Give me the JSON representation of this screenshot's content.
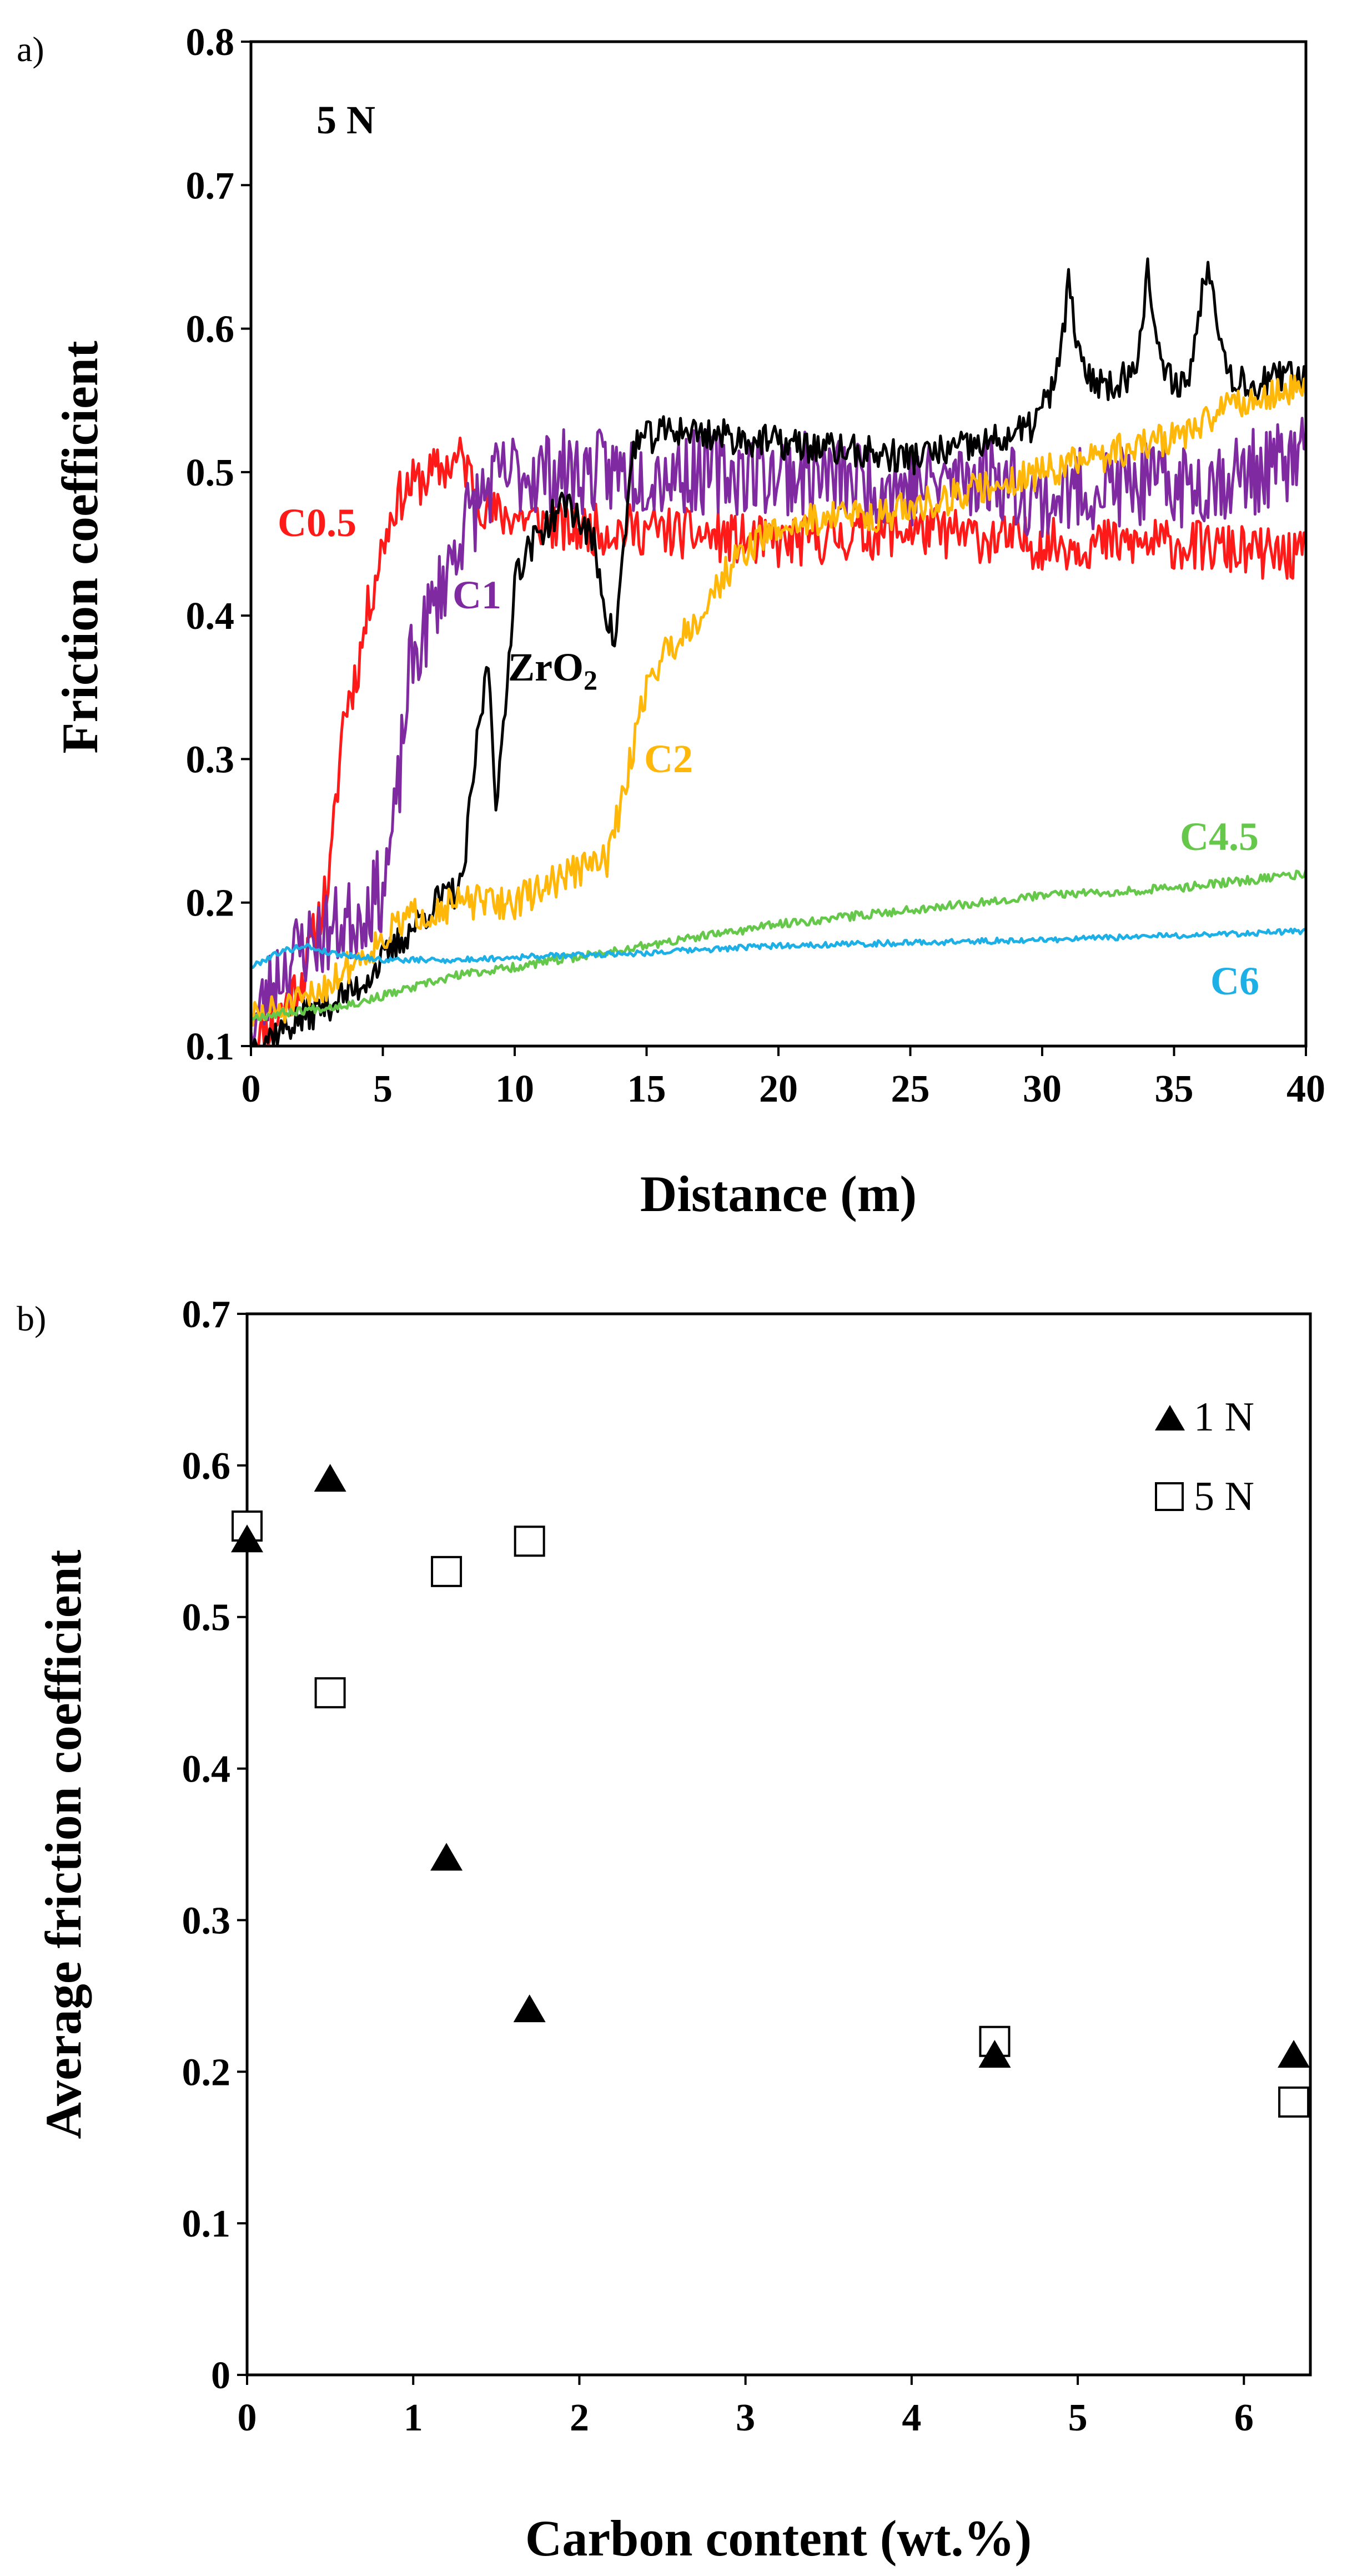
{
  "chart_data": [
    {
      "type": "line",
      "panel": "a)",
      "xlabel": "Distance (m)",
      "ylabel": "Friction coefficient",
      "xlim": [
        0,
        40
      ],
      "ylim": [
        0.1,
        0.8
      ],
      "xticks": [
        "0",
        "5",
        "10",
        "15",
        "20",
        "25",
        "30",
        "35",
        "40"
      ],
      "yticks": [
        "0.1",
        "0.2",
        "0.3",
        "0.4",
        "0.5",
        "0.6",
        "0.7",
        "0.8"
      ],
      "annotation": "5 N",
      "series": [
        {
          "name": "C0.5",
          "label": "C0.5",
          "color": "#ff1a1a",
          "noise": 0.018,
          "seed": 11,
          "x": [
            0,
            1,
            2,
            3,
            3.5,
            4,
            4.5,
            5,
            5.5,
            6,
            7,
            8,
            8.5,
            9,
            10,
            12,
            15,
            20,
            25,
            30,
            35,
            40
          ],
          "y": [
            0.1,
            0.12,
            0.15,
            0.22,
            0.33,
            0.36,
            0.41,
            0.45,
            0.48,
            0.49,
            0.5,
            0.51,
            0.49,
            0.47,
            0.47,
            0.46,
            0.46,
            0.45,
            0.46,
            0.45,
            0.45,
            0.44
          ]
        },
        {
          "name": "C1",
          "label": "C1",
          "color": "#7f2aa0",
          "noise": 0.03,
          "seed": 23,
          "x": [
            0,
            1,
            2,
            3,
            4,
            5,
            5.5,
            6,
            7,
            8,
            9,
            10,
            12,
            14,
            16,
            20,
            25,
            28,
            30,
            32,
            35,
            38,
            40
          ],
          "y": [
            0.11,
            0.15,
            0.17,
            0.18,
            0.19,
            0.21,
            0.26,
            0.36,
            0.41,
            0.46,
            0.49,
            0.5,
            0.5,
            0.5,
            0.5,
            0.5,
            0.49,
            0.5,
            0.48,
            0.49,
            0.49,
            0.5,
            0.51
          ]
        },
        {
          "name": "ZrO2",
          "label": "ZrO2",
          "color": "#000000",
          "noise": 0.012,
          "seed": 37,
          "x": [
            0,
            2,
            4,
            6,
            7,
            8,
            8.5,
            9,
            9.3,
            9.6,
            10,
            11,
            12,
            13,
            13.5,
            13.8,
            14.5,
            16,
            20,
            25,
            28,
            29.5,
            30.5,
            31,
            31.5,
            32.5,
            33.5,
            34,
            34.5,
            35.5,
            36.3,
            37,
            38,
            40
          ],
          "y": [
            0.1,
            0.12,
            0.14,
            0.18,
            0.2,
            0.21,
            0.3,
            0.37,
            0.27,
            0.32,
            0.43,
            0.46,
            0.48,
            0.45,
            0.4,
            0.38,
            0.52,
            0.53,
            0.52,
            0.51,
            0.52,
            0.53,
            0.56,
            0.63,
            0.57,
            0.56,
            0.57,
            0.64,
            0.57,
            0.56,
            0.65,
            0.57,
            0.56,
            0.57
          ]
        },
        {
          "name": "C2",
          "label": "C2",
          "color": "#ffb80a",
          "noise": 0.012,
          "seed": 51,
          "x": [
            0,
            2,
            4,
            6,
            8,
            10,
            11,
            12,
            13.5,
            14.2,
            14.8,
            15.5,
            16,
            17,
            18,
            19,
            20,
            22,
            24,
            26,
            28,
            30,
            32,
            34,
            36,
            37,
            38,
            40
          ],
          "y": [
            0.12,
            0.13,
            0.16,
            0.19,
            0.2,
            0.2,
            0.21,
            0.22,
            0.23,
            0.28,
            0.34,
            0.37,
            0.38,
            0.4,
            0.43,
            0.45,
            0.46,
            0.47,
            0.47,
            0.48,
            0.49,
            0.5,
            0.51,
            0.52,
            0.53,
            0.55,
            0.55,
            0.56
          ]
        },
        {
          "name": "C4.5",
          "label": "C4.5",
          "color": "#66c84a",
          "noise": 0.003,
          "seed": 67,
          "x": [
            0,
            2,
            4,
            6,
            8,
            10,
            15,
            20,
            25,
            30,
            35,
            40
          ],
          "y": [
            0.12,
            0.125,
            0.13,
            0.14,
            0.15,
            0.155,
            0.17,
            0.185,
            0.195,
            0.205,
            0.21,
            0.22
          ]
        },
        {
          "name": "C6",
          "label": "C6",
          "color": "#1cb0e6",
          "noise": 0.002,
          "seed": 79,
          "x": [
            0,
            1,
            2,
            3,
            5,
            8,
            10,
            15,
            20,
            25,
            30,
            35,
            40
          ],
          "y": [
            0.155,
            0.165,
            0.17,
            0.165,
            0.16,
            0.16,
            0.162,
            0.165,
            0.17,
            0.172,
            0.174,
            0.177,
            0.18
          ]
        }
      ]
    },
    {
      "type": "scatter",
      "panel": "b)",
      "xlabel": "Carbon content (wt.%)",
      "ylabel": "Average friction coefficient",
      "xlim": [
        0,
        6.4
      ],
      "ylim": [
        0,
        0.7
      ],
      "xticks": [
        "0",
        "1",
        "2",
        "3",
        "4",
        "5",
        "6"
      ],
      "yticks": [
        "0",
        "0.1",
        "0.2",
        "0.3",
        "0.4",
        "0.5",
        "0.6",
        "0.7"
      ],
      "legend_position": "top-right",
      "series": [
        {
          "name": "1 N",
          "marker": "filled-triangle",
          "color": "#000000",
          "x": [
            0,
            0.5,
            1.2,
            1.7,
            4.5,
            6.3
          ],
          "y": [
            0.55,
            0.59,
            0.34,
            0.24,
            0.21,
            0.21
          ]
        },
        {
          "name": "5 N",
          "marker": "open-square",
          "color": "#000000",
          "x": [
            0,
            0.5,
            1.2,
            1.7,
            4.5,
            6.3
          ],
          "y": [
            0.56,
            0.45,
            0.53,
            0.55,
            0.22,
            0.18
          ]
        }
      ]
    }
  ]
}
